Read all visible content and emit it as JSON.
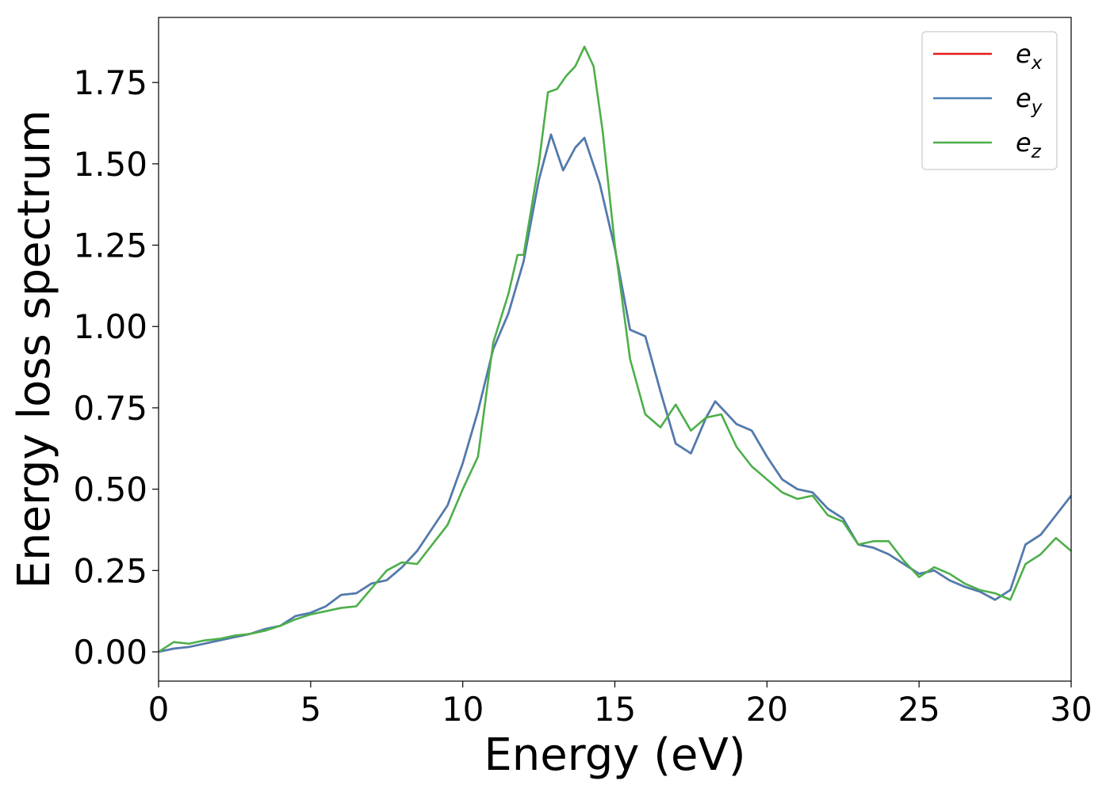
{
  "chart_data": {
    "type": "line",
    "xlabel": "Energy (eV)",
    "ylabel": "Energy loss spectrum",
    "xlim": [
      0,
      30
    ],
    "ylim": [
      -0.09,
      1.95
    ],
    "grid": false,
    "legend_position": "top-right",
    "xticks": [
      0,
      5,
      10,
      15,
      20,
      25,
      30
    ],
    "xtick_labels": [
      "0",
      "5",
      "10",
      "15",
      "20",
      "25",
      "30"
    ],
    "yticks": [
      0.0,
      0.25,
      0.5,
      0.75,
      1.0,
      1.25,
      1.5,
      1.75
    ],
    "ytick_labels": [
      "0.00",
      "0.25",
      "0.50",
      "0.75",
      "1.00",
      "1.25",
      "1.50",
      "1.75"
    ],
    "series": [
      {
        "name": "e_x",
        "label_base": "e",
        "label_sub": "x",
        "color": "#e41a1c",
        "x": [
          0,
          0.5,
          1,
          1.5,
          2,
          2.5,
          3,
          3.5,
          4,
          4.5,
          5,
          5.5,
          6,
          6.5,
          7,
          7.5,
          8,
          8.5,
          9,
          9.5,
          10,
          10.5,
          11,
          11.5,
          12,
          12.5,
          12.9,
          13.3,
          13.7,
          14,
          14.5,
          15,
          15.5,
          16,
          16.5,
          17,
          17.5,
          18,
          18.3,
          18.7,
          19,
          19.5,
          20,
          20.5,
          21,
          21.5,
          22,
          22.5,
          23,
          23.5,
          24,
          24.5,
          25,
          25.5,
          26,
          26.5,
          27,
          27.5,
          28,
          28.5,
          29,
          29.5,
          30
        ],
        "y": [
          0.0,
          0.01,
          0.015,
          0.025,
          0.035,
          0.045,
          0.055,
          0.07,
          0.08,
          0.11,
          0.12,
          0.14,
          0.175,
          0.18,
          0.21,
          0.22,
          0.26,
          0.31,
          0.38,
          0.45,
          0.58,
          0.74,
          0.93,
          1.04,
          1.2,
          1.45,
          1.59,
          1.48,
          1.55,
          1.58,
          1.44,
          1.24,
          0.99,
          0.97,
          0.8,
          0.64,
          0.61,
          0.72,
          0.77,
          0.73,
          0.7,
          0.68,
          0.6,
          0.53,
          0.5,
          0.49,
          0.44,
          0.41,
          0.33,
          0.32,
          0.3,
          0.27,
          0.24,
          0.25,
          0.22,
          0.2,
          0.185,
          0.16,
          0.19,
          0.33,
          0.36,
          0.42,
          0.48
        ]
      },
      {
        "name": "e_y",
        "label_base": "e",
        "label_sub": "y",
        "color": "#4a7eb3",
        "x": [
          0,
          0.5,
          1,
          1.5,
          2,
          2.5,
          3,
          3.5,
          4,
          4.5,
          5,
          5.5,
          6,
          6.5,
          7,
          7.5,
          8,
          8.5,
          9,
          9.5,
          10,
          10.5,
          11,
          11.5,
          12,
          12.5,
          12.9,
          13.3,
          13.7,
          14,
          14.5,
          15,
          15.5,
          16,
          16.5,
          17,
          17.5,
          18,
          18.3,
          18.7,
          19,
          19.5,
          20,
          20.5,
          21,
          21.5,
          22,
          22.5,
          23,
          23.5,
          24,
          24.5,
          25,
          25.5,
          26,
          26.5,
          27,
          27.5,
          28,
          28.5,
          29,
          29.5,
          30
        ],
        "y": [
          0.0,
          0.01,
          0.015,
          0.025,
          0.035,
          0.045,
          0.055,
          0.07,
          0.08,
          0.11,
          0.12,
          0.14,
          0.175,
          0.18,
          0.21,
          0.22,
          0.26,
          0.31,
          0.38,
          0.45,
          0.58,
          0.74,
          0.93,
          1.04,
          1.2,
          1.45,
          1.59,
          1.48,
          1.55,
          1.58,
          1.44,
          1.24,
          0.99,
          0.97,
          0.8,
          0.64,
          0.61,
          0.72,
          0.77,
          0.73,
          0.7,
          0.68,
          0.6,
          0.53,
          0.5,
          0.49,
          0.44,
          0.41,
          0.33,
          0.32,
          0.3,
          0.27,
          0.24,
          0.25,
          0.22,
          0.2,
          0.185,
          0.16,
          0.19,
          0.33,
          0.36,
          0.42,
          0.48
        ]
      },
      {
        "name": "e_z",
        "label_base": "e",
        "label_sub": "z",
        "color": "#4daf4a",
        "x": [
          0,
          0.5,
          1,
          1.5,
          2,
          2.5,
          3,
          3.5,
          4,
          4.5,
          5,
          5.5,
          6,
          6.5,
          7,
          7.5,
          8,
          8.5,
          9,
          9.5,
          10,
          10.5,
          11,
          11.5,
          11.8,
          12,
          12.5,
          12.8,
          13.1,
          13.4,
          13.7,
          14,
          14.3,
          14.6,
          15,
          15.5,
          16,
          16.5,
          17,
          17.5,
          18,
          18.5,
          19,
          19.5,
          20,
          20.5,
          21,
          21.5,
          22,
          22.5,
          23,
          23.5,
          24,
          24.5,
          25,
          25.5,
          26,
          26.5,
          27,
          27.5,
          28,
          28.5,
          29,
          29.5,
          30
        ],
        "y": [
          0.0,
          0.03,
          0.025,
          0.035,
          0.04,
          0.05,
          0.055,
          0.065,
          0.08,
          0.1,
          0.115,
          0.125,
          0.135,
          0.14,
          0.195,
          0.25,
          0.275,
          0.27,
          0.33,
          0.39,
          0.5,
          0.6,
          0.95,
          1.1,
          1.22,
          1.22,
          1.5,
          1.72,
          1.73,
          1.77,
          1.8,
          1.86,
          1.8,
          1.6,
          1.25,
          0.9,
          0.73,
          0.69,
          0.76,
          0.68,
          0.72,
          0.73,
          0.63,
          0.57,
          0.53,
          0.49,
          0.47,
          0.48,
          0.42,
          0.4,
          0.33,
          0.34,
          0.34,
          0.28,
          0.23,
          0.26,
          0.24,
          0.21,
          0.19,
          0.18,
          0.16,
          0.27,
          0.3,
          0.35,
          0.31
        ]
      }
    ]
  }
}
